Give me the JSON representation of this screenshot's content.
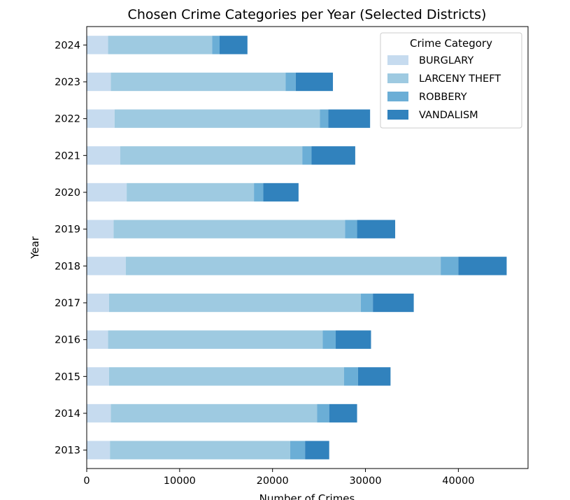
{
  "chart_data": {
    "type": "bar",
    "orientation": "horizontal",
    "stacked": true,
    "title": "Chosen Crime Categories per Year (Selected Districts)",
    "xlabel": "Number of Crimes",
    "ylabel": "Year",
    "xlim": [
      0,
      47500
    ],
    "x_ticks": [
      0,
      10000,
      20000,
      30000,
      40000
    ],
    "x_tick_labels": [
      "0",
      "10000",
      "20000",
      "30000",
      "40000"
    ],
    "categories": [
      "2013",
      "2014",
      "2015",
      "2016",
      "2017",
      "2018",
      "2019",
      "2020",
      "2021",
      "2022",
      "2023",
      "2024"
    ],
    "grid": false,
    "legend": {
      "title": "Crime Category",
      "placement": "top-right"
    },
    "series": [
      {
        "name": "BURGLARY",
        "color": "#c6dbef",
        "values": [
          2500,
          2600,
          2400,
          2300,
          2400,
          4200,
          2900,
          4300,
          3600,
          3000,
          2600,
          2300
        ]
      },
      {
        "name": "LARCENY THEFT",
        "color": "#9ecae1",
        "values": [
          19400,
          22200,
          25300,
          23100,
          27100,
          33900,
          24900,
          13700,
          19600,
          22100,
          18800,
          11200
        ]
      },
      {
        "name": "ROBBERY",
        "color": "#6baed6",
        "values": [
          1600,
          1300,
          1500,
          1400,
          1300,
          1900,
          1300,
          1000,
          1000,
          900,
          1100,
          800
        ]
      },
      {
        "name": "VANDALISM",
        "color": "#3182bd",
        "values": [
          2600,
          3000,
          3500,
          3800,
          4400,
          5200,
          4100,
          3800,
          4700,
          4500,
          4000,
          3000
        ]
      }
    ]
  }
}
